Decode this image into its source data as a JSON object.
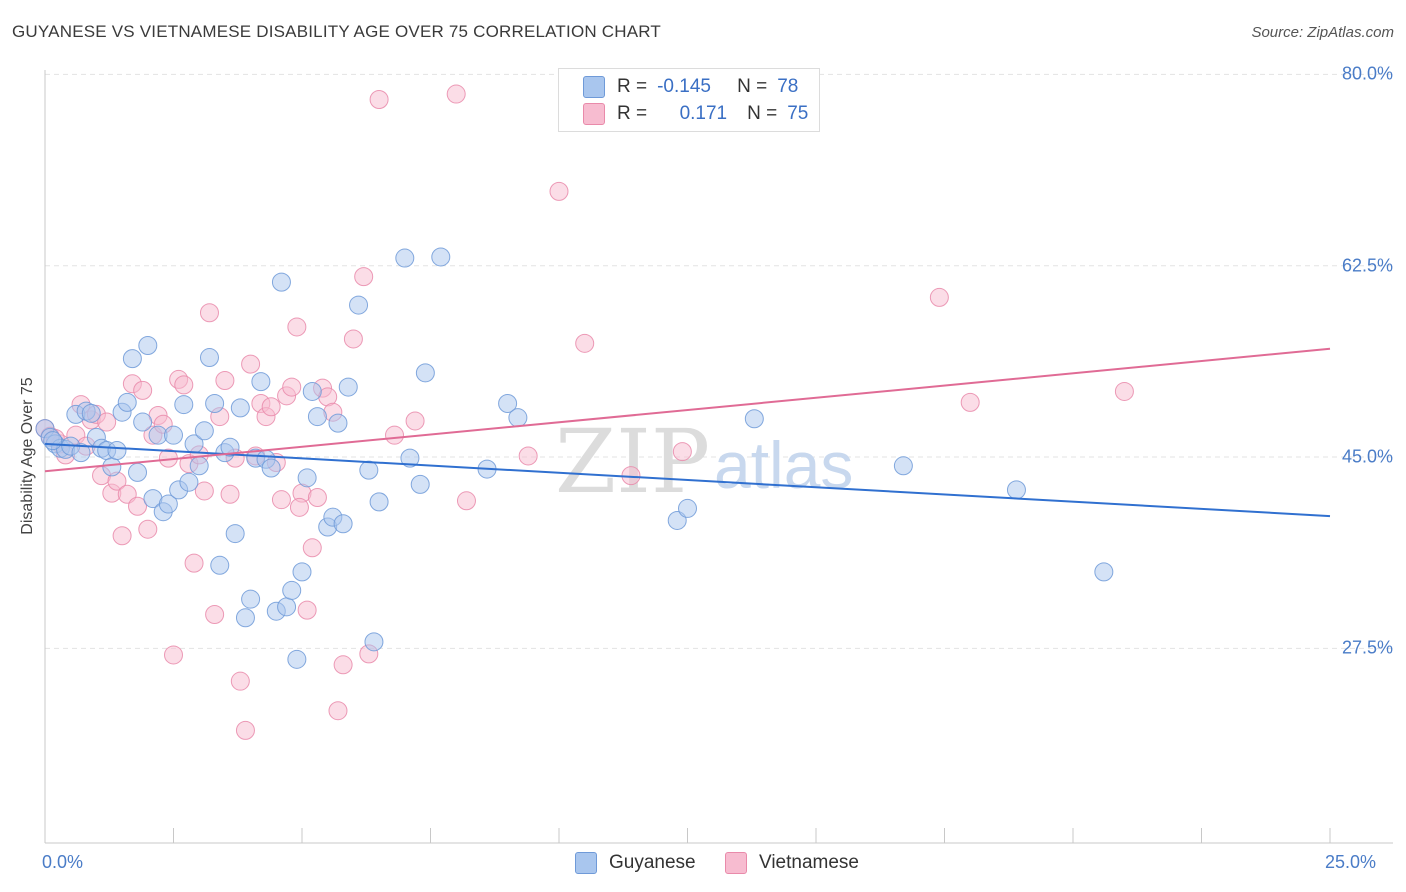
{
  "title": "GUYANESE VS VIETNAMESE DISABILITY AGE OVER 75 CORRELATION CHART",
  "source": "Source: ZipAtlas.com",
  "watermark": {
    "zip": "ZIP",
    "atlas": "atlas"
  },
  "colors": {
    "guyanese_fill": "#a9c6ee",
    "guyanese_stroke": "#6f9ad8",
    "guyanese_line": "#3070d0",
    "vietnamese_fill": "#f7bcd0",
    "vietnamese_stroke": "#e98aaa",
    "vietnamese_line": "#e06b95",
    "grid": "#e3e3e3",
    "tick_text": "#4a7cc7"
  },
  "legend": {
    "rows": [
      {
        "r_label": "R =",
        "r_value": "-0.145",
        "n_label": "N =",
        "n_value": "78"
      },
      {
        "r_label": "R =",
        "r_value": "0.171",
        "n_label": "N =",
        "n_value": "75"
      }
    ]
  },
  "chart_data": {
    "type": "scatter",
    "title": "GUYANESE VS VIETNAMESE DISABILITY AGE OVER 75 CORRELATION CHART",
    "xlabel": "",
    "ylabel": "Disability Age Over 75",
    "xlim": [
      0,
      25
    ],
    "ylim": [
      9.7,
      80.4
    ],
    "x_tick_labels": [
      "0.0%",
      "25.0%"
    ],
    "y_ticks": [
      27.5,
      45.0,
      62.5,
      80.0
    ],
    "y_tick_labels": [
      "27.5%",
      "45.0%",
      "62.5%",
      "80.0%"
    ],
    "grid": true,
    "legend_position": "top-center",
    "series": [
      {
        "name": "Guyanese",
        "r": -0.145,
        "n": 78,
        "trend": {
          "x": [
            0,
            25
          ],
          "y": [
            46.2,
            39.6
          ]
        },
        "points": [
          [
            0.0,
            47.6
          ],
          [
            0.1,
            46.8
          ],
          [
            0.2,
            46.2
          ],
          [
            0.3,
            45.8
          ],
          [
            0.4,
            45.7
          ],
          [
            0.5,
            46.0
          ],
          [
            0.6,
            48.9
          ],
          [
            0.7,
            45.4
          ],
          [
            0.8,
            49.2
          ],
          [
            0.9,
            49.0
          ],
          [
            1.0,
            46.8
          ],
          [
            1.1,
            45.8
          ],
          [
            1.2,
            45.6
          ],
          [
            1.3,
            44.1
          ],
          [
            1.4,
            45.6
          ],
          [
            1.5,
            49.1
          ],
          [
            1.6,
            50.0
          ],
          [
            1.7,
            54.0
          ],
          [
            1.8,
            43.6
          ],
          [
            1.9,
            48.2
          ],
          [
            2.0,
            55.2
          ],
          [
            2.1,
            41.2
          ],
          [
            2.2,
            47.0
          ],
          [
            2.3,
            40.0
          ],
          [
            2.4,
            40.7
          ],
          [
            2.5,
            47.0
          ],
          [
            2.6,
            42.0
          ],
          [
            2.7,
            49.8
          ],
          [
            2.8,
            42.7
          ],
          [
            2.9,
            46.2
          ],
          [
            3.0,
            44.2
          ],
          [
            3.1,
            47.4
          ],
          [
            3.2,
            54.1
          ],
          [
            3.3,
            49.9
          ],
          [
            3.4,
            35.1
          ],
          [
            3.5,
            45.4
          ],
          [
            3.6,
            45.9
          ],
          [
            3.7,
            38.0
          ],
          [
            3.8,
            49.5
          ],
          [
            3.9,
            30.3
          ],
          [
            4.0,
            32.0
          ],
          [
            4.1,
            44.9
          ],
          [
            4.2,
            51.9
          ],
          [
            4.3,
            44.8
          ],
          [
            4.4,
            44.0
          ],
          [
            4.5,
            30.9
          ],
          [
            4.6,
            61.0
          ],
          [
            4.7,
            31.3
          ],
          [
            4.8,
            32.8
          ],
          [
            4.9,
            26.5
          ],
          [
            5.0,
            34.5
          ],
          [
            5.1,
            43.1
          ],
          [
            5.2,
            51.0
          ],
          [
            5.3,
            48.7
          ],
          [
            5.5,
            38.6
          ],
          [
            5.6,
            39.5
          ],
          [
            5.7,
            48.1
          ],
          [
            5.8,
            38.9
          ],
          [
            5.9,
            51.4
          ],
          [
            6.1,
            58.9
          ],
          [
            6.3,
            43.8
          ],
          [
            6.4,
            28.1
          ],
          [
            6.5,
            40.9
          ],
          [
            7.0,
            63.2
          ],
          [
            7.1,
            44.9
          ],
          [
            7.3,
            42.5
          ],
          [
            7.4,
            52.7
          ],
          [
            7.7,
            63.3
          ],
          [
            8.6,
            43.9
          ],
          [
            9.0,
            49.9
          ],
          [
            9.2,
            48.6
          ],
          [
            12.3,
            39.2
          ],
          [
            12.5,
            40.3
          ],
          [
            13.8,
            48.5
          ],
          [
            16.7,
            44.2
          ],
          [
            18.9,
            42.0
          ],
          [
            20.6,
            34.5
          ],
          [
            0.15,
            46.5
          ]
        ]
      },
      {
        "name": "Vietnamese",
        "r": 0.171,
        "n": 75,
        "trend": {
          "x": [
            0,
            25
          ],
          "y": [
            43.7,
            54.9
          ]
        },
        "points": [
          [
            0.0,
            47.6
          ],
          [
            0.1,
            46.9
          ],
          [
            0.3,
            46.2
          ],
          [
            0.4,
            45.2
          ],
          [
            0.6,
            47.0
          ],
          [
            0.7,
            49.8
          ],
          [
            0.8,
            46.0
          ],
          [
            0.9,
            48.4
          ],
          [
            1.0,
            48.9
          ],
          [
            1.1,
            43.3
          ],
          [
            1.2,
            48.2
          ],
          [
            1.3,
            41.7
          ],
          [
            1.4,
            42.8
          ],
          [
            1.5,
            37.8
          ],
          [
            1.6,
            41.6
          ],
          [
            1.7,
            51.7
          ],
          [
            1.8,
            40.5
          ],
          [
            1.9,
            51.1
          ],
          [
            2.0,
            38.4
          ],
          [
            2.1,
            47.0
          ],
          [
            2.2,
            48.8
          ],
          [
            2.3,
            48.0
          ],
          [
            2.4,
            44.9
          ],
          [
            2.5,
            26.9
          ],
          [
            2.6,
            52.1
          ],
          [
            2.7,
            51.6
          ],
          [
            2.8,
            44.4
          ],
          [
            2.9,
            35.3
          ],
          [
            3.0,
            45.2
          ],
          [
            3.1,
            41.9
          ],
          [
            3.2,
            58.2
          ],
          [
            3.3,
            30.6
          ],
          [
            3.4,
            48.7
          ],
          [
            3.5,
            52.0
          ],
          [
            3.6,
            41.6
          ],
          [
            3.7,
            44.9
          ],
          [
            3.8,
            24.5
          ],
          [
            3.9,
            20.0
          ],
          [
            4.0,
            53.5
          ],
          [
            4.1,
            45.1
          ],
          [
            4.2,
            49.9
          ],
          [
            4.3,
            48.7
          ],
          [
            4.4,
            49.6
          ],
          [
            4.5,
            44.5
          ],
          [
            4.6,
            41.1
          ],
          [
            4.7,
            50.6
          ],
          [
            4.8,
            51.4
          ],
          [
            4.9,
            56.9
          ],
          [
            5.0,
            41.7
          ],
          [
            5.1,
            31.0
          ],
          [
            5.2,
            36.7
          ],
          [
            5.3,
            41.3
          ],
          [
            5.4,
            51.3
          ],
          [
            5.5,
            50.5
          ],
          [
            5.6,
            49.1
          ],
          [
            5.7,
            21.8
          ],
          [
            5.8,
            26.0
          ],
          [
            6.0,
            55.8
          ],
          [
            6.2,
            61.5
          ],
          [
            6.3,
            27.0
          ],
          [
            6.5,
            77.7
          ],
          [
            6.8,
            47.0
          ],
          [
            7.2,
            48.3
          ],
          [
            8.0,
            78.2
          ],
          [
            8.2,
            41.0
          ],
          [
            9.4,
            45.1
          ],
          [
            10.0,
            69.3
          ],
          [
            10.5,
            55.4
          ],
          [
            11.4,
            43.3
          ],
          [
            12.4,
            45.5
          ],
          [
            17.4,
            59.6
          ],
          [
            18.0,
            50.0
          ],
          [
            21.0,
            51.0
          ],
          [
            0.2,
            46.7
          ],
          [
            4.95,
            40.4
          ]
        ]
      }
    ]
  },
  "bottom_legend": [
    "Guyanese",
    "Vietnamese"
  ]
}
